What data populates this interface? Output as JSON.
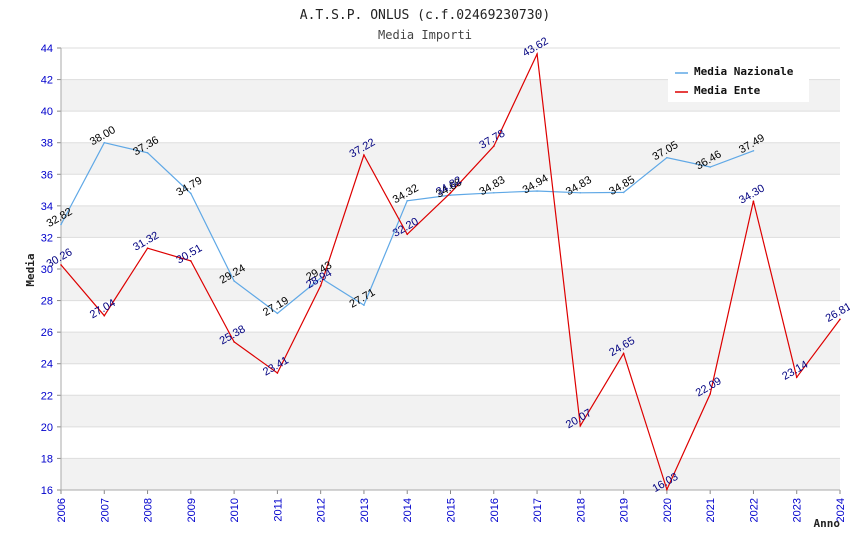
{
  "chart_data": {
    "type": "line",
    "title": "A.T.S.P. ONLUS (c.f.02469230730)",
    "subtitle": "Media Importi",
    "xlabel": "Anno",
    "ylabel": "Media",
    "x": [
      "2006",
      "2007",
      "2008",
      "2009",
      "2010",
      "2011",
      "2012",
      "2013",
      "2014",
      "2015",
      "2016",
      "2017",
      "2018",
      "2019",
      "2020",
      "2021",
      "2022",
      "2023",
      "2024"
    ],
    "ylim": [
      16,
      44
    ],
    "yticks": [
      "16",
      "18",
      "20",
      "22",
      "24",
      "26",
      "28",
      "30",
      "32",
      "34",
      "36",
      "38",
      "40",
      "42",
      "44"
    ],
    "legend_position": "top-right",
    "series": [
      {
        "name": "Media Nazionale",
        "color": "#5fa8e6",
        "label_color": "#000000",
        "values": [
          32.82,
          38.0,
          37.36,
          34.79,
          29.24,
          27.19,
          29.43,
          27.71,
          34.32,
          34.68,
          34.83,
          34.94,
          34.83,
          34.85,
          37.05,
          36.46,
          37.49,
          null,
          null
        ],
        "labels": [
          "32.82",
          "38.00",
          "37.36",
          "34.79",
          "29.24",
          "27.19",
          "29.43",
          "27.71",
          "34.32",
          "34.68",
          "34.83",
          "34.94",
          "34.83",
          "34.85",
          "37.05",
          "36.46",
          "37.49",
          null,
          null
        ]
      },
      {
        "name": "Media Ente",
        "color": "#dd0000",
        "label_color": "#000080",
        "values": [
          30.26,
          27.04,
          31.32,
          30.51,
          25.38,
          23.41,
          28.94,
          37.22,
          32.2,
          34.82,
          37.78,
          43.62,
          20.07,
          24.65,
          16.03,
          22.09,
          34.3,
          23.14,
          26.81
        ],
        "labels": [
          "30.26",
          "27.04",
          "31.32",
          "30.51",
          "25.38",
          "23.41",
          "28.94",
          "37.22",
          "32.20",
          "34.82",
          "37.78",
          "43.62",
          "20.07",
          "24.65",
          "16.03",
          "22.09",
          "34.30",
          "23.14",
          "26.81"
        ]
      }
    ]
  }
}
